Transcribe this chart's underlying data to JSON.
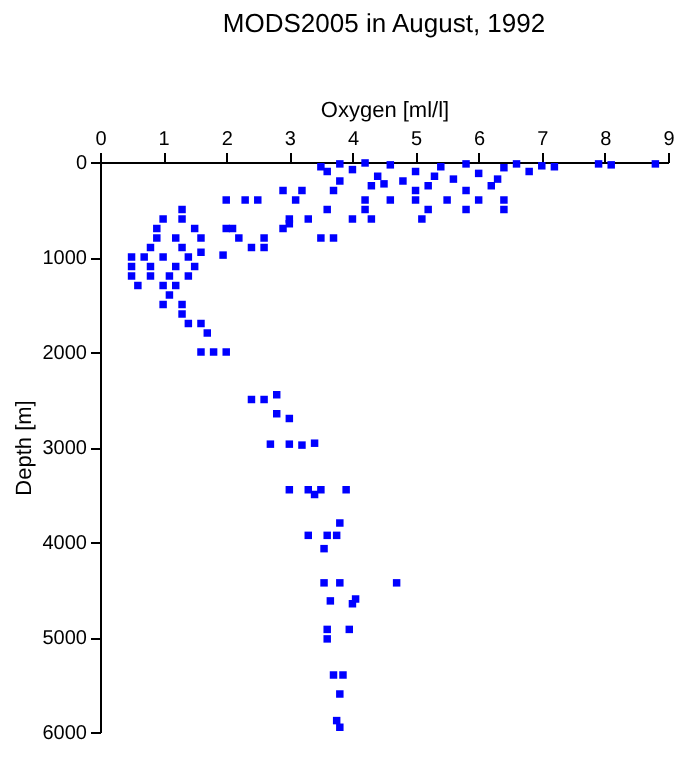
{
  "chart_data": {
    "type": "scatter",
    "title": "MODS2005 in August, 1992",
    "xlabel": "Oxygen [ml/l]",
    "ylabel": "Depth [m]",
    "xlim": [
      0,
      9
    ],
    "xticks": [
      0,
      1,
      2,
      3,
      4,
      5,
      6,
      7,
      8,
      9
    ],
    "ylim": [
      6000,
      0
    ],
    "yticks": [
      0,
      1000,
      2000,
      3000,
      4000,
      5000,
      6000
    ],
    "grid": false,
    "marker": "square",
    "series": [
      {
        "color": "#0000ff",
        "x": [
          3.5,
          3.6,
          3.8,
          4.0,
          4.2,
          4.4,
          4.6,
          4.8,
          5.0,
          5.2,
          5.4,
          5.6,
          5.8,
          6.0,
          6.2,
          6.4,
          6.6,
          6.8,
          7.0,
          7.2,
          7.9,
          8.1,
          8.8,
          4.3,
          5.0,
          5.8,
          6.3,
          3.8,
          4.5,
          5.3,
          2.0,
          2.3,
          2.5,
          3.1,
          4.2,
          4.6,
          5.0,
          5.5,
          6.0,
          6.4,
          2.9,
          3.2,
          3.7,
          1.3,
          3.6,
          4.2,
          5.2,
          5.8,
          6.4,
          1.0,
          1.3,
          2.1,
          3.3,
          4.0,
          5.1,
          4.3,
          3.0,
          0.9,
          1.5,
          2.0,
          2.9,
          3.0,
          0.9,
          1.2,
          1.6,
          2.2,
          2.6,
          3.5,
          3.7,
          0.8,
          1.3,
          2.4,
          2.6,
          0.5,
          0.7,
          1.0,
          1.4,
          1.6,
          1.95,
          0.5,
          0.8,
          1.2,
          1.5,
          0.5,
          0.8,
          1.1,
          1.4,
          0.6,
          1.0,
          1.2,
          1.1,
          1.0,
          1.3,
          1.3,
          1.4,
          1.6,
          1.7,
          1.6,
          1.8,
          2.0,
          2.4,
          2.6,
          2.8,
          2.8,
          3.0,
          2.7,
          3.0,
          3.2,
          3.4,
          3.0,
          3.3,
          3.5,
          3.9,
          3.4,
          3.8,
          3.3,
          3.6,
          3.75,
          3.55,
          3.55,
          3.8,
          4.7,
          4.05,
          4.0,
          3.65,
          3.6,
          3.95,
          3.6,
          3.7,
          3.85,
          3.8,
          3.75,
          3.8
        ],
        "values": [
          50,
          100,
          20,
          80,
          10,
          150,
          30,
          200,
          100,
          250,
          50,
          180,
          20,
          120,
          250,
          60,
          20,
          100,
          40,
          50,
          20,
          30,
          20,
          250,
          300,
          300,
          180,
          200,
          230,
          150,
          400,
          400,
          400,
          400,
          400,
          400,
          400,
          400,
          400,
          400,
          300,
          300,
          300,
          500,
          500,
          500,
          500,
          500,
          500,
          600,
          600,
          700,
          600,
          600,
          600,
          600,
          650,
          700,
          700,
          700,
          700,
          600,
          800,
          800,
          800,
          800,
          800,
          800,
          800,
          900,
          900,
          900,
          900,
          1000,
          1000,
          1000,
          1000,
          950,
          980,
          1100,
          1100,
          1100,
          1100,
          1200,
          1200,
          1200,
          1200,
          1300,
          1300,
          1300,
          1400,
          1500,
          1500,
          1600,
          1700,
          1700,
          1800,
          2000,
          2000,
          2000,
          2500,
          2500,
          2450,
          2650,
          2700,
          2970,
          2970,
          2980,
          2960,
          3450,
          3450,
          3450,
          3450,
          3500,
          3800,
          3930,
          3930,
          3930,
          4070,
          4430,
          4430,
          4430,
          4600,
          4650,
          4620,
          4920,
          4920,
          5020,
          5400,
          5400,
          5600,
          5880,
          5950
        ]
      }
    ]
  }
}
